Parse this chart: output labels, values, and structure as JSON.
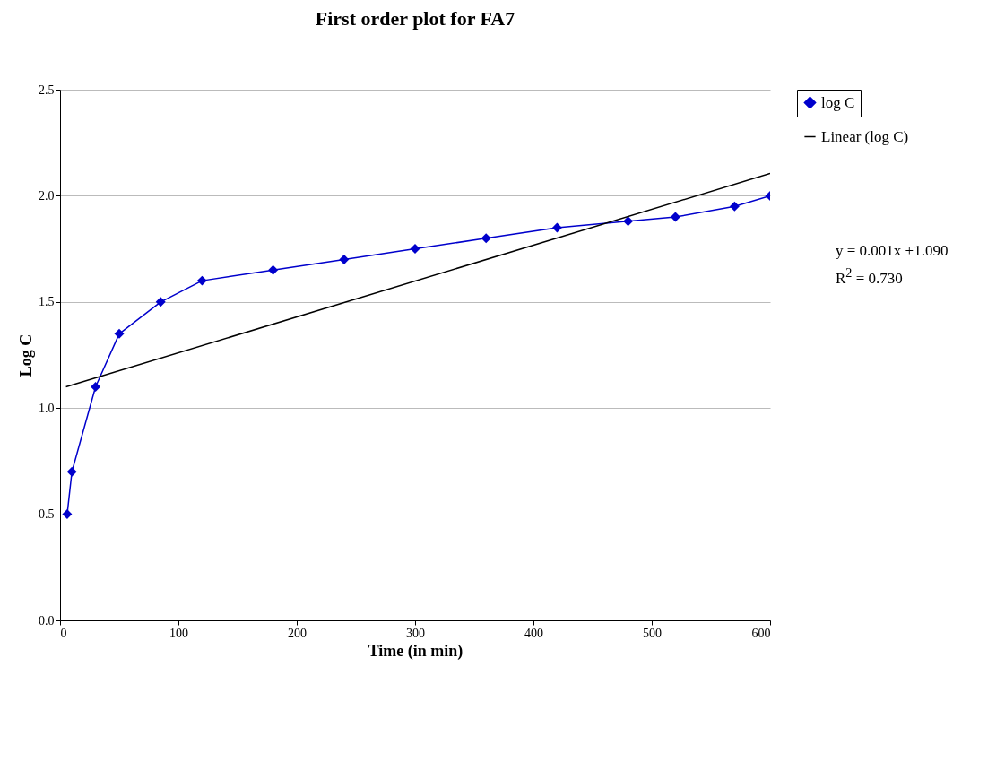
{
  "chart_data": {
    "type": "line",
    "title": "First order plot for FA7",
    "xlabel": "Time (in min)",
    "ylabel": "Log C",
    "xlim": [
      0,
      600
    ],
    "xticks": [
      0,
      100,
      200,
      300,
      400,
      500,
      600
    ],
    "ylim": [
      0,
      2.5
    ],
    "yticks": [
      {
        "value": 0,
        "label": "0.0"
      },
      {
        "value": 0.5,
        "label": "0.5"
      },
      {
        "value": 1,
        "label": "1.0"
      },
      {
        "value": 1.5,
        "label": "1.5"
      },
      {
        "value": 2,
        "label": "2.0"
      },
      {
        "value": 2.5,
        "label": "2.5"
      }
    ],
    "grid": "y",
    "legend": "right",
    "line_style": "solid",
    "x": [
      6,
      10,
      30,
      50,
      85,
      120,
      180,
      240,
      300,
      360,
      420,
      480,
      520,
      570,
      600
    ],
    "series": [
      {
        "name": "log C",
        "color": "#0000cc",
        "marker": "diamond",
        "values": [
          0.5,
          0.7,
          1.1,
          1.35,
          1.5,
          1.6,
          1.65,
          1.7,
          1.75,
          1.8,
          1.85,
          1.88,
          1.9,
          1.95,
          2.0
        ]
      },
      {
        "name": "Linear (log C)",
        "type": "line",
        "color": "#000000",
        "marker": "none",
        "x": [
          5,
          600
        ],
        "values": [
          1.1,
          2.105
        ]
      }
    ],
    "annotations": [
      "y = 0.001x +1.090",
      "R$^{2}$ = 0.730"
    ]
  }
}
